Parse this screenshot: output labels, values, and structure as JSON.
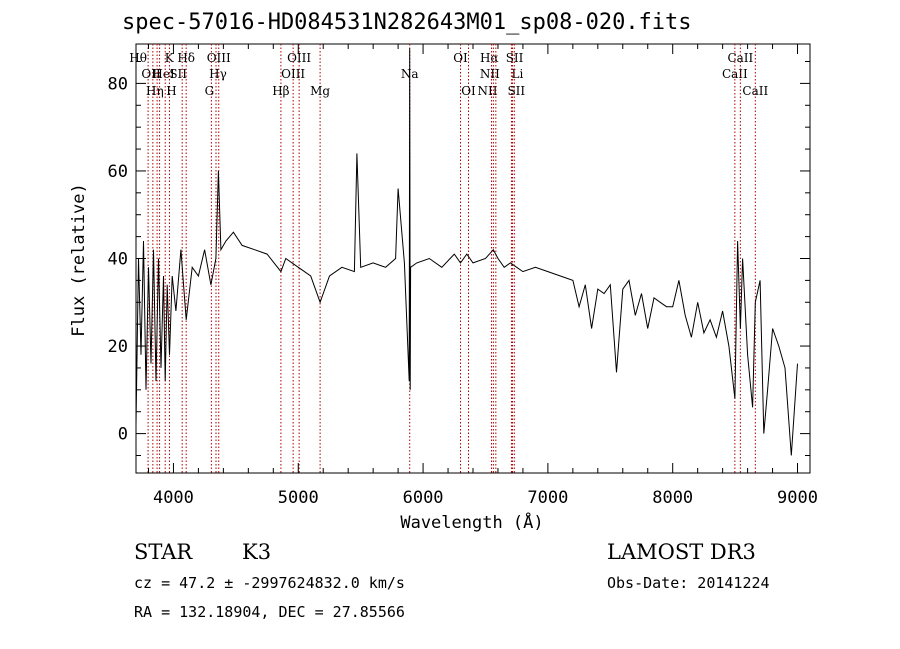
{
  "header": {
    "title": "spec-57016-HD084531N282643M01_sp08-020.fits"
  },
  "footer": {
    "object_class": "STAR",
    "subclass": "K3",
    "survey": "LAMOST DR3",
    "redshift_text": "cz = 47.2 ± -2997624832.0 km/s",
    "obs_date_text": "Obs-Date: 20141224",
    "coords_text": "RA = 132.18904, DEC =  27.85566"
  },
  "chart_data": {
    "type": "line",
    "title": "spec-57016-HD084531N282643M01_sp08-020.fits",
    "xlabel": "Wavelength (Å)",
    "ylabel": "Flux (relative)",
    "xlim": [
      3700,
      9100
    ],
    "ylim": [
      -9,
      89
    ],
    "xticks": [
      4000,
      5000,
      6000,
      7000,
      8000,
      9000
    ],
    "yticks": [
      0,
      20,
      40,
      60,
      80
    ],
    "grid": false,
    "series": [
      {
        "color": "#000000",
        "x": [
          3700,
          3720,
          3740,
          3760,
          3780,
          3800,
          3820,
          3840,
          3860,
          3880,
          3900,
          3920,
          3934,
          3950,
          3968,
          3990,
          4020,
          4060,
          4102,
          4150,
          4200,
          4250,
          4300,
          4340,
          4360,
          4380,
          4420,
          4480,
          4550,
          4650,
          4750,
          4861,
          4900,
          5000,
          5100,
          5175,
          5250,
          5350,
          5450,
          5470,
          5500,
          5600,
          5700,
          5780,
          5800,
          5850,
          5889,
          5893,
          5897,
          5900,
          5950,
          6050,
          6150,
          6250,
          6300,
          6350,
          6400,
          6500,
          6563,
          6600,
          6650,
          6700,
          6750,
          6800,
          6900,
          7000,
          7100,
          7200,
          7250,
          7300,
          7350,
          7400,
          7450,
          7500,
          7550,
          7600,
          7650,
          7700,
          7750,
          7800,
          7850,
          7900,
          7950,
          8000,
          8050,
          8100,
          8150,
          8200,
          8250,
          8300,
          8350,
          8400,
          8450,
          8498,
          8520,
          8542,
          8560,
          8600,
          8640,
          8662,
          8700,
          8730,
          8760,
          8800,
          8850,
          8900,
          8950,
          9000
        ],
        "y": [
          2,
          40,
          18,
          44,
          10,
          38,
          16,
          42,
          12,
          40,
          15,
          36,
          12,
          34,
          18,
          36,
          28,
          42,
          26,
          38,
          36,
          42,
          34,
          40,
          60,
          42,
          44,
          46,
          43,
          42,
          41,
          37,
          40,
          38,
          36,
          30,
          36,
          38,
          37,
          64,
          38,
          39,
          38,
          40,
          56,
          39,
          12,
          88,
          10,
          38,
          39,
          40,
          38,
          41,
          39,
          41,
          39,
          40,
          42,
          40,
          38,
          39,
          38,
          37,
          38,
          37,
          36,
          35,
          29,
          34,
          24,
          33,
          32,
          34,
          14,
          33,
          35,
          27,
          32,
          24,
          31,
          30,
          29,
          29,
          35,
          27,
          22,
          30,
          23,
          26,
          22,
          28,
          20,
          8,
          44,
          24,
          40,
          18,
          6,
          30,
          35,
          0,
          10,
          24,
          20,
          15,
          -5,
          16
        ]
      }
    ],
    "annotations": [
      {
        "wave": 3797,
        "label": "Hθ",
        "row": 1,
        "dx": -10
      },
      {
        "wave": 3835,
        "label": "Hη",
        "row": 3,
        "dx": 2
      },
      {
        "wave": 3869,
        "label": "OII",
        "row": 2,
        "dx": -6
      },
      {
        "wave": 3889,
        "label": "HeI",
        "row": 2,
        "dx": 4
      },
      {
        "wave": 3934,
        "label": "K",
        "row": 1,
        "dx": 4
      },
      {
        "wave": 3968,
        "label": "H",
        "row": 3,
        "dx": 2
      },
      {
        "wave": 4070,
        "label": "SII",
        "row": 2,
        "dx": -4
      },
      {
        "wave": 4102,
        "label": "Hδ",
        "row": 1,
        "dx": 0
      },
      {
        "wave": 4304,
        "label": "G",
        "row": 3,
        "dx": -2
      },
      {
        "wave": 4341,
        "label": "Hγ",
        "row": 2,
        "dx": 2
      },
      {
        "wave": 4363,
        "label": "OIII",
        "row": 1,
        "dx": 0
      },
      {
        "wave": 4861,
        "label": "Hβ",
        "row": 3,
        "dx": 0
      },
      {
        "wave": 4959,
        "label": "OIII",
        "row": 2,
        "dx": 0
      },
      {
        "wave": 5007,
        "label": "OIII",
        "row": 1,
        "dx": 0
      },
      {
        "wave": 5175,
        "label": "Mg",
        "row": 3,
        "dx": 0
      },
      {
        "wave": 5893,
        "label": "Na",
        "row": 2,
        "dx": 0
      },
      {
        "wave": 6300,
        "label": "OI",
        "row": 1,
        "dx": 0
      },
      {
        "wave": 6364,
        "label": "OI",
        "row": 3,
        "dx": 0
      },
      {
        "wave": 6548,
        "label": "NII",
        "row": 3,
        "dx": -4
      },
      {
        "wave": 6563,
        "label": "Hα",
        "row": 1,
        "dx": -4
      },
      {
        "wave": 6583,
        "label": "NII",
        "row": 2,
        "dx": -6
      },
      {
        "wave": 6708,
        "label": "Li",
        "row": 2,
        "dx": 6
      },
      {
        "wave": 6717,
        "label": "SII",
        "row": 1,
        "dx": 2
      },
      {
        "wave": 6731,
        "label": "SII",
        "row": 3,
        "dx": 2
      },
      {
        "wave": 8498,
        "label": "CaII",
        "row": 2,
        "dx": 0
      },
      {
        "wave": 8542,
        "label": "CaII",
        "row": 1,
        "dx": 0
      },
      {
        "wave": 8662,
        "label": "CaII",
        "row": 3,
        "dx": 0
      }
    ]
  }
}
